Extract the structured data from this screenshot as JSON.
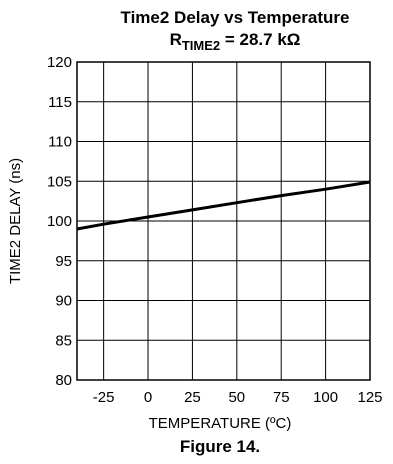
{
  "chart_data": {
    "type": "line",
    "title": "Time2 Delay vs Temperature",
    "subtitle": {
      "prefix": "R",
      "subscript": "TIME2",
      "suffix": " = 28.7 kΩ"
    },
    "xlabel": "TEMPERATURE (ºC)",
    "ylabel": "TIME2 DELAY (ns)",
    "xlim": [
      -40,
      125
    ],
    "ylim": [
      80,
      120
    ],
    "xticks": [
      -25,
      0,
      25,
      50,
      75,
      100,
      125
    ],
    "yticks": [
      80,
      85,
      90,
      95,
      100,
      105,
      110,
      115,
      120
    ],
    "grid": true,
    "series": [
      {
        "x": [
          -40,
          -25,
          0,
          25,
          50,
          75,
          100,
          125
        ],
        "y": [
          99.0,
          99.6,
          100.5,
          101.4,
          102.3,
          103.2,
          104.0,
          104.9
        ]
      }
    ]
  },
  "figure_caption": "Figure 14."
}
